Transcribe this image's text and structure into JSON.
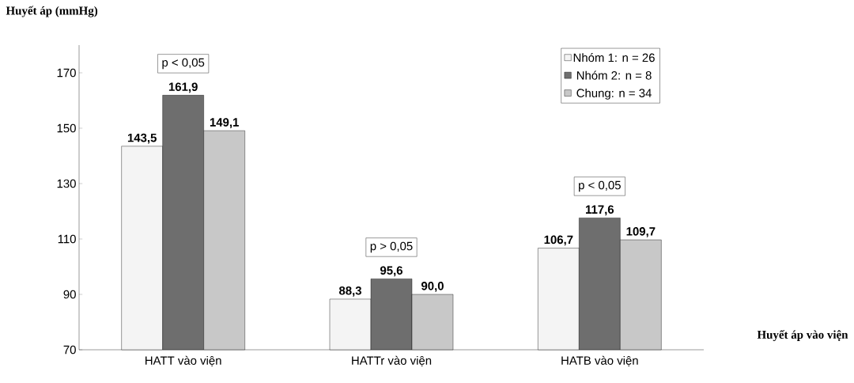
{
  "chart_data": {
    "type": "bar",
    "ylabel": "Huyết áp (mmHg)",
    "xlabel": "Huyết áp vào viện",
    "categories": [
      "HATT vào viện",
      "HATTr vào viện",
      "HATB vào viện"
    ],
    "series": [
      {
        "name": "Nhóm 1: n = 26",
        "color": "#f4f4f4",
        "values": [
          143.5,
          88.3,
          106.7
        ],
        "value_labels": [
          "143,5",
          "88,3",
          "106,7"
        ]
      },
      {
        "name": "Nhóm 2: n = 8",
        "color": "#6e6e6e",
        "values": [
          161.9,
          95.6,
          117.6
        ],
        "value_labels": [
          "161,9",
          "95,6",
          "117,6"
        ]
      },
      {
        "name": "Chung: n = 34",
        "color": "#c8c8c8",
        "values": [
          149.1,
          90.0,
          109.7
        ],
        "value_labels": [
          "149,1",
          "90,0",
          "109,7"
        ]
      }
    ],
    "annotations": [
      "p < 0,05",
      "p > 0,05",
      "p < 0,05"
    ],
    "ylim": [
      70,
      180
    ],
    "yticks": [
      70,
      90,
      110,
      130,
      150,
      170
    ],
    "legend": "top right",
    "grid": false
  }
}
